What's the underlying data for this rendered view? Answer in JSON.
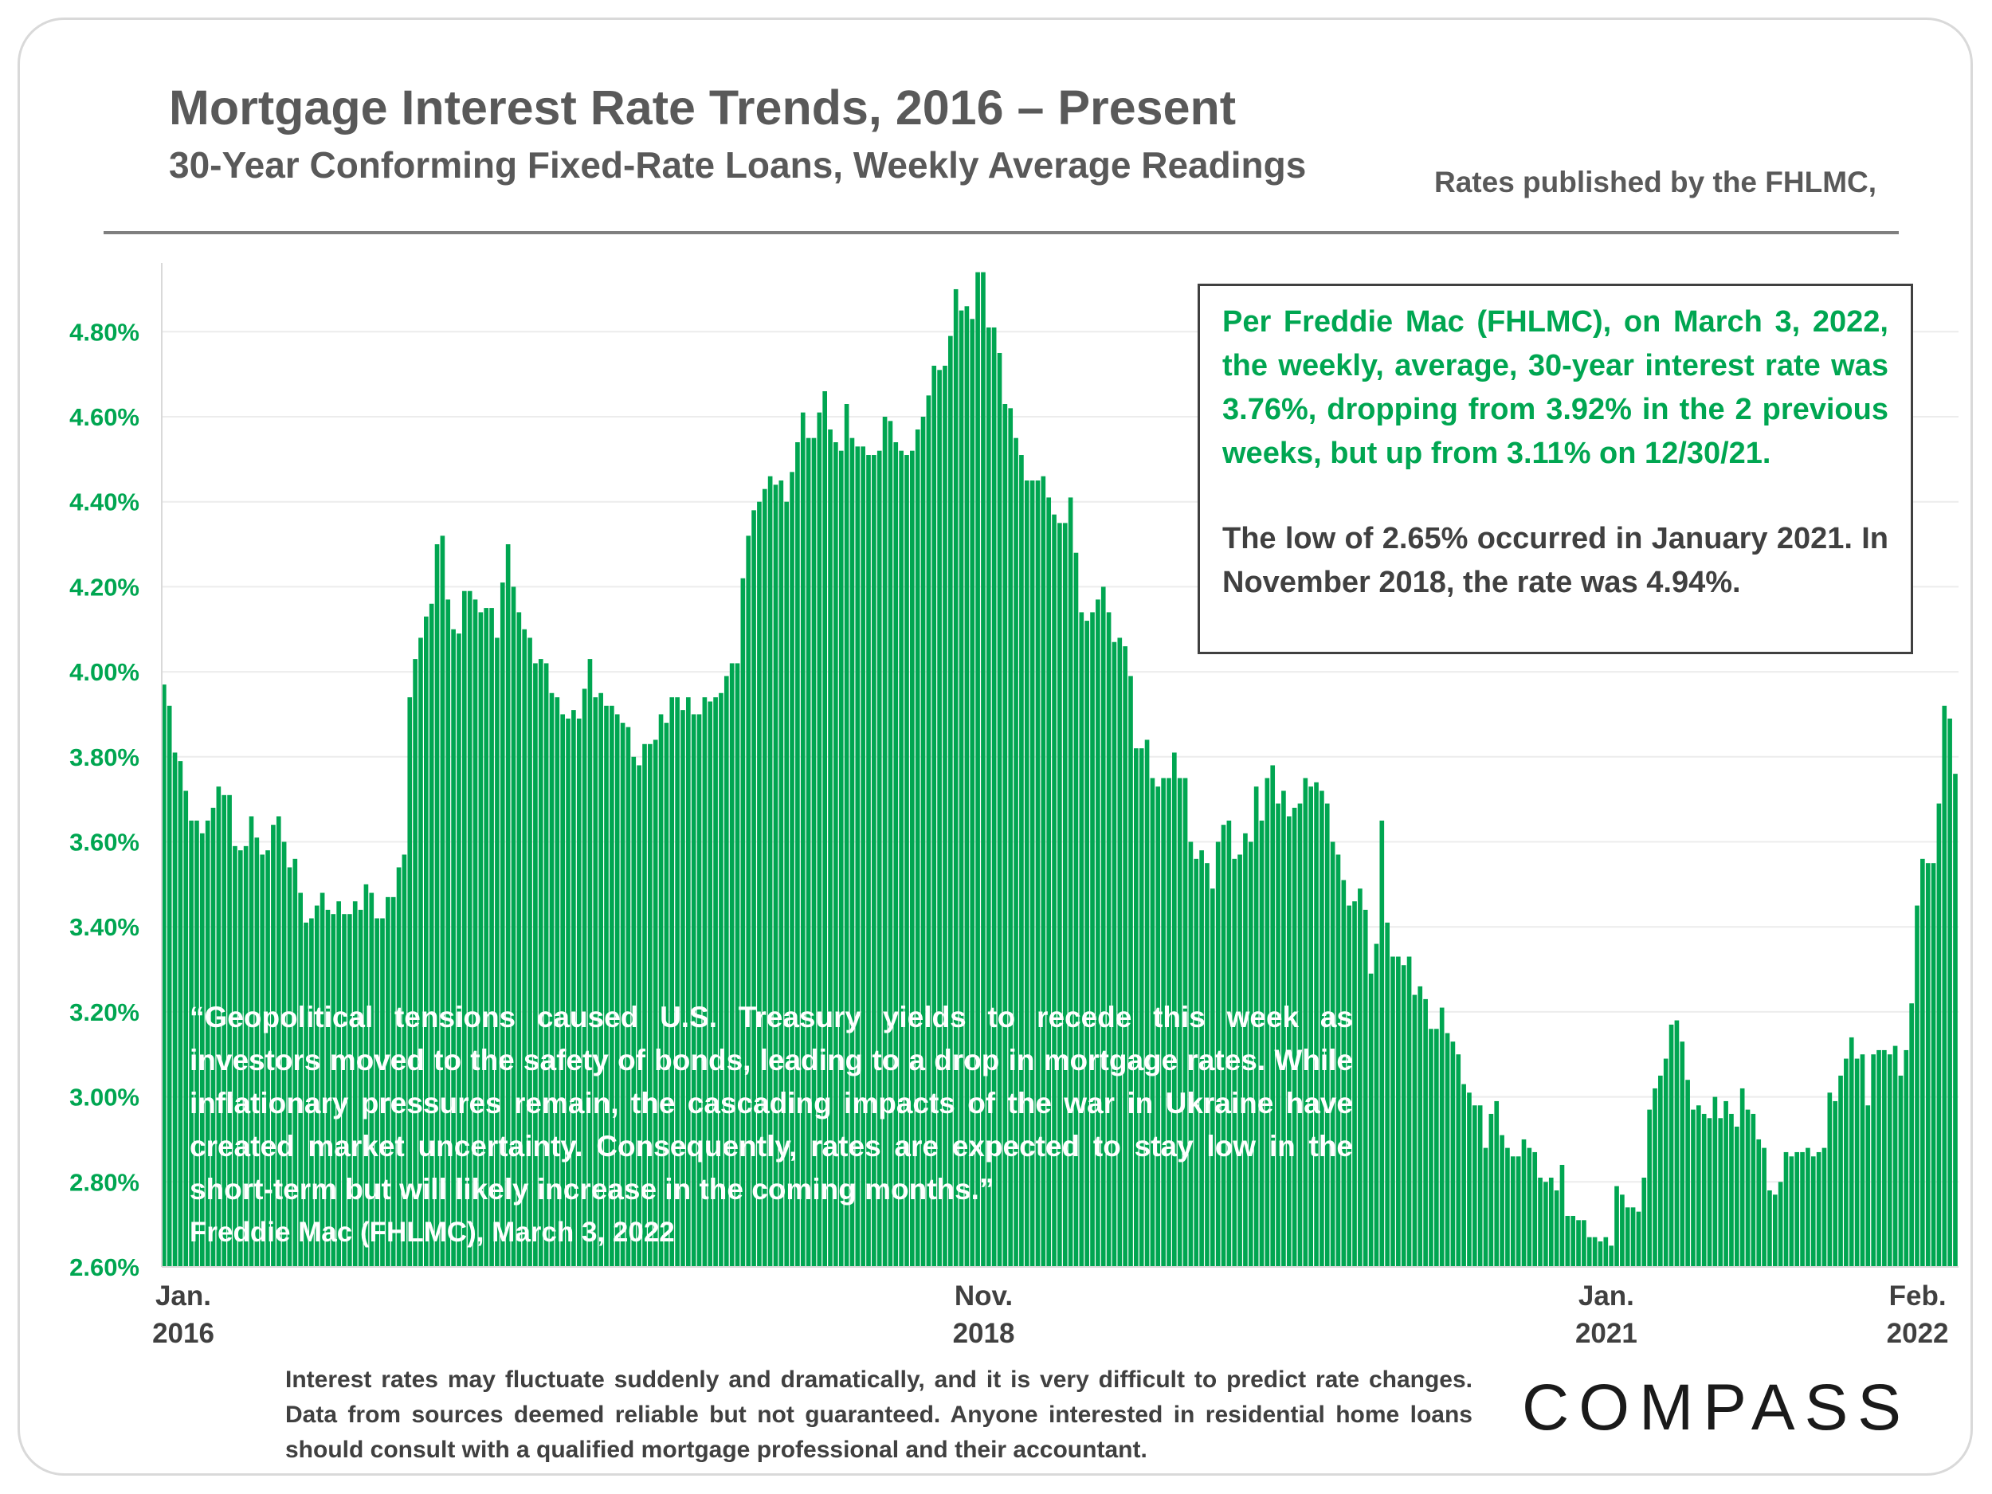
{
  "header": {
    "title": "Mortgage Interest Rate Trends, 2016 – Present",
    "subtitle": "30-Year Conforming Fixed-Rate Loans, Weekly Average Readings",
    "source": "Rates published by the FHLMC,"
  },
  "callout": {
    "green_text": "Per Freddie Mac (FHLMC), on March 3, 2022, the weekly, average, 30-year interest rate was 3.76%, dropping from 3.92% in the 2 previous weeks, but up from 3.11% on 12/30/21.",
    "dark_text": "The low of 2.65% occurred in January 2021. In November 2018, the rate was 4.94%."
  },
  "quote": {
    "text": "“Geopolitical tensions caused U.S. Treasury yields to recede this week as investors moved to the safety of bonds, leading to a drop in mortgage rates. While inflationary pressures remain, the cascading impacts of the war in Ukraine have created market uncertainty. Consequently, rates are expected to stay low in the short-term but will likely increase in the coming months.”",
    "attribution": "Freddie Mac (FHLMC), March 3, 2022"
  },
  "disclaimer": "Interest rates may fluctuate suddenly and dramatically, and it is very difficult to predict rate changes. Data from sources deemed reliable but not guaranteed. Anyone interested in residential home loans should consult with a qualified mortgage professional and their accountant.",
  "logo_text": "COMPASS",
  "colors": {
    "bar": "#00a651",
    "accent_green": "#00a651",
    "text_gray": "#595959"
  },
  "chart_data": {
    "type": "bar",
    "title": "Mortgage Interest Rate Trends, 2016 – Present",
    "xlabel": "",
    "ylabel": "",
    "ylim": [
      2.6,
      4.95
    ],
    "yticks": [
      "2.60%",
      "2.80%",
      "3.00%",
      "3.20%",
      "3.40%",
      "3.60%",
      "3.80%",
      "4.00%",
      "4.20%",
      "4.40%",
      "4.60%",
      "4.80%"
    ],
    "xticks": [
      {
        "index": 0,
        "line1": "Jan.",
        "line2": "2016"
      },
      {
        "index": 150,
        "line1": "Nov.",
        "line2": "2018"
      },
      {
        "index": 264,
        "line1": "Jan.",
        "line2": "2021"
      },
      {
        "index": 321,
        "line1": "Feb.",
        "line2": "2022"
      }
    ],
    "series": [
      {
        "name": "30-Year Fixed Rate (weekly)",
        "values": [
          3.97,
          3.92,
          3.81,
          3.79,
          3.72,
          3.65,
          3.65,
          3.62,
          3.65,
          3.68,
          3.73,
          3.71,
          3.71,
          3.59,
          3.58,
          3.59,
          3.66,
          3.61,
          3.57,
          3.58,
          3.64,
          3.66,
          3.6,
          3.54,
          3.56,
          3.48,
          3.41,
          3.42,
          3.45,
          3.48,
          3.44,
          3.43,
          3.46,
          3.43,
          3.43,
          3.46,
          3.44,
          3.5,
          3.48,
          3.42,
          3.42,
          3.47,
          3.47,
          3.54,
          3.57,
          3.94,
          4.03,
          4.08,
          4.13,
          4.16,
          4.3,
          4.32,
          4.17,
          4.1,
          4.09,
          4.19,
          4.19,
          4.17,
          4.14,
          4.15,
          4.15,
          4.08,
          4.21,
          4.3,
          4.2,
          4.14,
          4.1,
          4.08,
          4.02,
          4.03,
          4.02,
          3.95,
          3.94,
          3.9,
          3.89,
          3.91,
          3.89,
          3.96,
          4.03,
          3.94,
          3.95,
          3.92,
          3.92,
          3.9,
          3.88,
          3.87,
          3.8,
          3.78,
          3.83,
          3.83,
          3.84,
          3.9,
          3.88,
          3.94,
          3.94,
          3.91,
          3.94,
          3.9,
          3.9,
          3.94,
          3.93,
          3.94,
          3.95,
          3.99,
          4.02,
          4.02,
          4.22,
          4.32,
          4.38,
          4.4,
          4.43,
          4.46,
          4.44,
          4.45,
          4.4,
          4.47,
          4.54,
          4.61,
          4.55,
          4.55,
          4.61,
          4.66,
          4.57,
          4.54,
          4.52,
          4.63,
          4.55,
          4.53,
          4.53,
          4.51,
          4.51,
          4.52,
          4.6,
          4.59,
          4.54,
          4.52,
          4.51,
          4.52,
          4.57,
          4.6,
          4.65,
          4.72,
          4.71,
          4.72,
          4.79,
          4.9,
          4.85,
          4.86,
          4.83,
          4.94,
          4.94,
          4.81,
          4.81,
          4.75,
          4.63,
          4.62,
          4.55,
          4.51,
          4.45,
          4.45,
          4.45,
          4.46,
          4.41,
          4.37,
          4.35,
          4.35,
          4.41,
          4.28,
          4.14,
          4.12,
          4.14,
          4.17,
          4.2,
          4.14,
          4.07,
          4.08,
          4.06,
          3.99,
          3.82,
          3.82,
          3.84,
          3.75,
          3.73,
          3.75,
          3.75,
          3.81,
          3.75,
          3.75,
          3.6,
          3.56,
          3.58,
          3.55,
          3.49,
          3.6,
          3.64,
          3.65,
          3.56,
          3.57,
          3.62,
          3.6,
          3.73,
          3.65,
          3.75,
          3.78,
          3.69,
          3.72,
          3.66,
          3.68,
          3.69,
          3.75,
          3.73,
          3.74,
          3.72,
          3.69,
          3.6,
          3.57,
          3.51,
          3.45,
          3.46,
          3.49,
          3.44,
          3.29,
          3.36,
          3.65,
          3.41,
          3.33,
          3.33,
          3.31,
          3.33,
          3.24,
          3.26,
          3.23,
          3.16,
          3.16,
          3.21,
          3.15,
          3.13,
          3.1,
          3.03,
          3.01,
          2.98,
          2.98,
          2.88,
          2.96,
          2.99,
          2.91,
          2.88,
          2.86,
          2.86,
          2.9,
          2.88,
          2.87,
          2.81,
          2.8,
          2.81,
          2.78,
          2.84,
          2.72,
          2.72,
          2.71,
          2.71,
          2.67,
          2.67,
          2.66,
          2.67,
          2.65,
          2.79,
          2.77,
          2.74,
          2.74,
          2.73,
          2.81,
          2.97,
          3.02,
          3.05,
          3.09,
          3.17,
          3.18,
          3.13,
          3.04,
          2.97,
          2.98,
          2.96,
          2.95,
          3.0,
          2.95,
          2.99,
          2.96,
          2.93,
          3.02,
          2.97,
          2.96,
          2.9,
          2.88,
          2.78,
          2.77,
          2.8,
          2.87,
          2.86,
          2.87,
          2.87,
          2.88,
          2.86,
          2.87,
          2.88,
          3.01,
          2.99,
          3.05,
          3.09,
          3.14,
          3.09,
          3.1,
          2.98,
          3.1,
          3.11,
          3.11,
          3.1,
          3.12,
          3.05,
          3.11,
          3.22,
          3.45,
          3.56,
          3.55,
          3.55,
          3.69,
          3.92,
          3.89,
          3.76
        ]
      }
    ]
  }
}
